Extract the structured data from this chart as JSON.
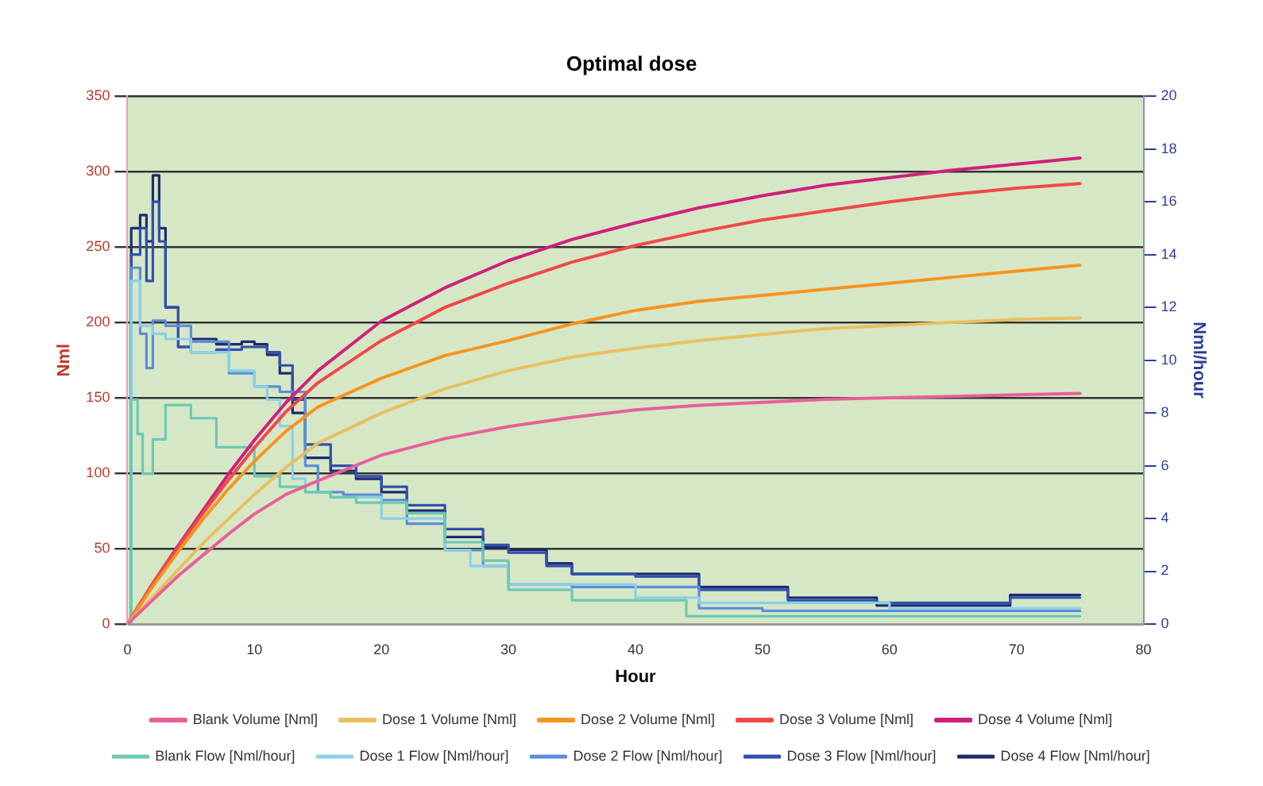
{
  "chart_data": {
    "type": "line",
    "title": "Optimal dose",
    "xlabel": "Hour",
    "ylabel": "Nml",
    "y2label": "Nml/hour",
    "xlim": [
      0,
      80
    ],
    "xticks": [
      0,
      10,
      20,
      30,
      40,
      50,
      60,
      70,
      80
    ],
    "ylim": [
      0,
      350
    ],
    "yticks": [
      0,
      50,
      100,
      150,
      200,
      250,
      300,
      350
    ],
    "y2lim": [
      0,
      20
    ],
    "y2ticks": [
      0,
      2,
      4,
      6,
      8,
      10,
      12,
      14,
      16,
      18,
      20
    ],
    "grid": "y",
    "legend": "bottom",
    "marker": "none",
    "line_style": "solid",
    "series": [
      {
        "name": "Blank Volume [Nml]",
        "type": "line",
        "color": "#e8609a",
        "x": [
          0,
          2,
          4,
          6,
          8,
          10,
          12.5,
          15,
          20,
          25,
          30,
          35,
          40,
          45,
          50,
          55,
          60,
          65,
          70,
          75
        ],
        "values": [
          0,
          16,
          32,
          46,
          60,
          73,
          86,
          95,
          112,
          123,
          131,
          137,
          142,
          145,
          147,
          149,
          150,
          151,
          152,
          153
        ]
      },
      {
        "name": "Dose 1 Volume [Nml]",
        "type": "line",
        "color": "#e8c060",
        "x": [
          0,
          2,
          4,
          6,
          8,
          10,
          12.5,
          15,
          20,
          25,
          30,
          35,
          40,
          45,
          50,
          55,
          60,
          65,
          70,
          75
        ],
        "values": [
          0,
          18,
          36,
          54,
          70,
          86,
          104,
          120,
          140,
          156,
          168,
          177,
          183,
          188,
          192,
          196,
          198,
          200,
          202,
          203
        ]
      },
      {
        "name": "Dose 2 Volume [Nml]",
        "type": "line",
        "color": "#f7941d",
        "x": [
          0,
          2,
          4,
          6,
          8,
          10,
          12.5,
          15,
          20,
          25,
          30,
          35,
          40,
          45,
          50,
          55,
          60,
          65,
          70,
          75
        ],
        "values": [
          0,
          25,
          48,
          70,
          90,
          108,
          128,
          144,
          163,
          178,
          188,
          199,
          208,
          214,
          218,
          222,
          226,
          230,
          234,
          238
        ]
      },
      {
        "name": "Dose 3 Volume [Nml]",
        "type": "line",
        "color": "#f04848",
        "x": [
          0,
          2,
          4,
          6,
          8,
          10,
          12.5,
          15,
          20,
          25,
          30,
          35,
          40,
          45,
          50,
          55,
          60,
          65,
          70,
          75
        ],
        "values": [
          0,
          27,
          51,
          74,
          96,
          117,
          141,
          160,
          188,
          210,
          226,
          240,
          251,
          260,
          268,
          274,
          280,
          285,
          289,
          292
        ]
      },
      {
        "name": "Dose 4 Volume [Nml]",
        "type": "line",
        "color": "#d0207a",
        "x": [
          0,
          2,
          4,
          6,
          8,
          10,
          12.5,
          15,
          20,
          25,
          30,
          35,
          40,
          45,
          50,
          55,
          60,
          65,
          70,
          75
        ],
        "values": [
          0,
          27,
          52,
          76,
          100,
          122,
          147,
          168,
          201,
          223,
          241,
          255,
          266,
          276,
          284,
          291,
          296,
          301,
          305,
          309
        ]
      },
      {
        "name": "Blank Flow [Nml/hour]",
        "type": "step",
        "axis": "y2",
        "color": "#6cc8b4",
        "x": [
          0,
          0.3,
          0.8,
          1.2,
          2,
          3,
          5,
          7,
          10,
          12,
          14,
          16,
          18,
          22,
          25,
          28,
          30,
          35,
          44,
          60,
          75
        ],
        "values": [
          0,
          8.5,
          7.2,
          5.7,
          7,
          8.3,
          7.8,
          6.7,
          5.6,
          5.2,
          5,
          4.8,
          4.6,
          4.2,
          3.1,
          2.4,
          1.3,
          0.9,
          0.3,
          0.3,
          0.3
        ]
      },
      {
        "name": "Dose 1 Flow [Nml/hour]",
        "type": "step",
        "axis": "y2",
        "color": "#8ccfe8",
        "x": [
          0,
          0.3,
          1,
          2,
          3,
          5,
          8,
          10,
          11,
          12,
          13,
          14,
          16,
          20,
          25,
          27,
          30,
          40,
          45,
          60,
          75
        ],
        "values": [
          0,
          13,
          11.3,
          11,
          10.8,
          10.3,
          9.6,
          9,
          8.5,
          7.5,
          5.5,
          5,
          4.8,
          4,
          2.8,
          2.2,
          1.5,
          1,
          0.8,
          0.6,
          0.6
        ]
      },
      {
        "name": "Dose 2 Flow [Nml/hour]",
        "type": "step",
        "axis": "y2",
        "color": "#5a8fd8",
        "x": [
          0,
          0.3,
          1,
          1.5,
          2,
          3,
          5,
          8,
          10,
          12,
          14,
          15,
          17,
          20,
          22,
          25,
          28,
          30,
          35,
          40,
          45,
          50,
          60,
          75
        ],
        "values": [
          0,
          13.5,
          11,
          9.7,
          11.5,
          11.3,
          10.7,
          9.5,
          9,
          8.8,
          6,
          5,
          4.9,
          4.7,
          3.8,
          2.8,
          2.2,
          1.5,
          1.4,
          1.4,
          0.6,
          0.5,
          0.5,
          0.5
        ]
      },
      {
        "name": "Dose 3 Flow [Nml/hour]",
        "type": "step",
        "axis": "y2",
        "color": "#3050b0",
        "x": [
          0,
          0.3,
          1,
          1.5,
          2,
          2.5,
          3,
          4,
          5,
          7,
          9,
          10,
          11,
          12,
          13,
          14,
          16,
          18,
          20,
          22,
          25,
          28,
          30,
          33,
          35,
          40,
          45,
          52,
          59,
          69.5,
          75
        ],
        "values": [
          0,
          14,
          15,
          13,
          16,
          14.5,
          12,
          10.5,
          10.3,
          10.4,
          10.5,
          10.5,
          10.3,
          9.8,
          8.5,
          6.8,
          6,
          5.6,
          5.2,
          4.5,
          3.6,
          3,
          2.7,
          2.2,
          1.9,
          1.8,
          1.3,
          0.9,
          0.8,
          1,
          1
        ]
      },
      {
        "name": "Dose 4 Flow [Nml/hour]",
        "type": "step",
        "axis": "y2",
        "color": "#1f2a6e",
        "x": [
          0,
          0.3,
          1,
          1.5,
          2,
          2.5,
          3,
          4,
          5,
          7,
          9,
          10,
          11,
          12,
          13,
          14,
          16,
          18,
          20,
          22,
          25,
          28,
          30,
          33,
          35,
          40,
          45,
          52,
          59,
          69.5,
          75
        ],
        "values": [
          0,
          15,
          15.5,
          14.5,
          17,
          15,
          12,
          10.5,
          10.8,
          10.6,
          10.7,
          10.6,
          10.2,
          9.5,
          8,
          6.3,
          5.8,
          5.5,
          5,
          4.3,
          3.3,
          2.9,
          2.8,
          2.3,
          1.9,
          1.9,
          1.4,
          1,
          0.7,
          1.1,
          1.1
        ]
      }
    ]
  }
}
